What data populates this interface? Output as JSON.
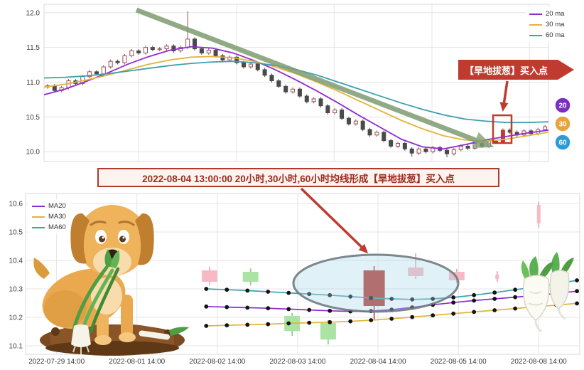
{
  "page": {
    "background": "#ffffff"
  },
  "colors": {
    "ma20": "#8f2bd4",
    "ma30": "#e2b33c",
    "ma60": "#3f9fae",
    "badge20": "#7b2fbe",
    "badge30": "#e8a33d",
    "badge60": "#2d9bd8",
    "signal_red": "#bf3b2f",
    "trend_green": "#7e9c72",
    "grid": "#e4e4e4",
    "frame": "#d9d9d9",
    "axis_text": "#3a3a3a",
    "candle_up_stroke": "#9c5050",
    "candle_up_fill": "#ffffff",
    "candle_down": "#4a4a4a",
    "pink_body": "#f6b9c5",
    "pink_wick": "#ec9dac",
    "green_body": "#abe3a4",
    "green_wick": "#83cc7c",
    "red_body": "#b5382e",
    "marker_dot": "#141414"
  },
  "legend_top": {
    "items": [
      {
        "label": "20 ma"
      },
      {
        "label": "30 ma"
      },
      {
        "label": "60 ma"
      }
    ]
  },
  "legend_bottom": {
    "items": [
      {
        "label": "MA20"
      },
      {
        "label": "MA30"
      },
      {
        "label": "MA60"
      }
    ]
  },
  "badges": [
    {
      "label": "20",
      "color_key": "badge20"
    },
    {
      "label": "30",
      "color_key": "badge30"
    },
    {
      "label": "60",
      "color_key": "badge60"
    }
  ],
  "callout": {
    "text": "【旱地拔葱】买入点"
  },
  "annotation": {
    "text": "2022-08-04 13:00:00 20小时,30小时,60小时均线形成【旱地拔葱】买入点"
  },
  "illustrations": {
    "dog": "sad-dog-pulling-scallion-from-dirt",
    "radish": "white-radish-characters"
  },
  "chart_data": [
    {
      "name": "upper-candlestick-panel",
      "type": "candlestick",
      "ylim": [
        9.9,
        12.1
      ],
      "yticks": [
        12.0,
        11.5,
        11.0,
        10.5,
        10.0
      ],
      "grid": true,
      "legend_position": "top-right",
      "closes": [
        10.95,
        10.88,
        10.92,
        11.02,
        10.98,
        11.08,
        11.15,
        11.12,
        11.22,
        11.3,
        11.28,
        11.38,
        11.45,
        11.42,
        11.5,
        11.47,
        11.48,
        11.52,
        11.45,
        11.5,
        11.62,
        11.48,
        11.42,
        11.46,
        11.38,
        11.32,
        11.36,
        11.28,
        11.22,
        11.26,
        11.18,
        11.1,
        11.02,
        10.94,
        10.86,
        10.9,
        10.8,
        10.72,
        10.76,
        10.66,
        10.56,
        10.6,
        10.48,
        10.4,
        10.44,
        10.32,
        10.24,
        10.28,
        10.16,
        10.08,
        10.12,
        10.04,
        9.98,
        10.04,
        10.0,
        10.06,
        10.02,
        9.97,
        10.03,
        10.08,
        10.05,
        10.12,
        10.08,
        10.15,
        10.14,
        10.31,
        10.28,
        10.24,
        10.3,
        10.26,
        10.32,
        10.36
      ],
      "wick_overrides": {
        "20": {
          "high": 12.02
        },
        "52": {
          "low": 9.93
        },
        "57": {
          "low": 9.92
        }
      },
      "signal_index": 65,
      "series": [
        {
          "name": "20 ma",
          "color_key": "ma20",
          "values": [
            10.82,
            10.9,
            11.01,
            11.13,
            11.26,
            11.37,
            11.46,
            11.51,
            11.49,
            11.42,
            11.31,
            11.18,
            11.03,
            10.87,
            10.7,
            10.52,
            10.35,
            10.18,
            10.07,
            10.04,
            10.1,
            10.17,
            10.22,
            10.27,
            10.31
          ]
        },
        {
          "name": "30 ma",
          "color_key": "ma30",
          "values": [
            10.93,
            10.97,
            11.03,
            11.1,
            11.18,
            11.26,
            11.32,
            11.36,
            11.37,
            11.35,
            11.3,
            11.22,
            11.12,
            11.0,
            10.87,
            10.73,
            10.59,
            10.45,
            10.33,
            10.23,
            10.17,
            10.15,
            10.18,
            10.23,
            10.28
          ]
        },
        {
          "name": "60 ma",
          "color_key": "ma60",
          "values": [
            11.06,
            11.07,
            11.09,
            11.12,
            11.16,
            11.2,
            11.24,
            11.27,
            11.29,
            11.3,
            11.28,
            11.24,
            11.18,
            11.1,
            11.0,
            10.9,
            10.8,
            10.7,
            10.61,
            10.53,
            10.47,
            10.44,
            10.42,
            10.42,
            10.43
          ]
        }
      ]
    },
    {
      "name": "lower-candlestick-panel",
      "type": "candlestick",
      "ylim": [
        10.08,
        10.63
      ],
      "yticks": [
        10.6,
        10.5,
        10.4,
        10.3,
        10.2,
        10.1
      ],
      "grid": true,
      "legend_position": "top-left",
      "xtick_labels": [
        "2022-07-29 14:00",
        "2022-08-01 14:00",
        "2022-08-02 14:00",
        "2022-08-03 14:00",
        "2022-08-04 14:00",
        "2022-08-05 14:00",
        "2022-08-08 14:00"
      ],
      "candles": [
        {
          "x": 0.332,
          "o": 10.325,
          "h": 10.378,
          "l": 10.312,
          "c": 10.365,
          "color": "pink"
        },
        {
          "x": 0.406,
          "o": 10.36,
          "h": 10.372,
          "l": 10.312,
          "c": 10.325,
          "color": "green"
        },
        {
          "x": 0.481,
          "o": 10.205,
          "h": 10.215,
          "l": 10.135,
          "c": 10.152,
          "color": "green"
        },
        {
          "x": 0.546,
          "o": 10.18,
          "h": 10.19,
          "l": 10.105,
          "c": 10.122,
          "color": "green"
        },
        {
          "x": 0.629,
          "o": 10.24,
          "h": 10.38,
          "l": 10.19,
          "c": 10.365,
          "color": "red",
          "width": "wide"
        },
        {
          "x": 0.704,
          "o": 10.345,
          "h": 10.425,
          "l": 10.335,
          "c": 10.375,
          "color": "pink"
        },
        {
          "x": 0.778,
          "o": 10.33,
          "h": 10.37,
          "l": 10.32,
          "c": 10.36,
          "color": "pink"
        },
        {
          "x": 0.851,
          "o": 10.335,
          "h": 10.362,
          "l": 10.325,
          "c": 10.35,
          "color": "pink",
          "width": "thin"
        },
        {
          "x": 0.926,
          "o": 10.53,
          "h": 10.605,
          "l": 10.515,
          "c": 10.595,
          "color": "pink",
          "width": "thin"
        }
      ],
      "series": [
        {
          "name": "MA20",
          "color_key": "ma20",
          "markers": true,
          "x_start": 0.326,
          "x_end": 0.995,
          "values": [
            10.238,
            10.236,
            10.234,
            10.232,
            10.229,
            10.226,
            10.223,
            10.221,
            10.222,
            10.227,
            10.235,
            10.244,
            10.252,
            10.259,
            10.265,
            10.271,
            10.277,
            10.284,
            10.292
          ]
        },
        {
          "name": "MA30",
          "color_key": "ma30",
          "markers": true,
          "x_start": 0.326,
          "x_end": 0.995,
          "values": [
            10.17,
            10.172,
            10.174,
            10.176,
            10.179,
            10.181,
            10.183,
            10.186,
            10.19,
            10.195,
            10.201,
            10.207,
            10.213,
            10.219,
            10.225,
            10.231,
            10.237,
            10.243,
            10.249
          ]
        },
        {
          "name": "MA60",
          "color_key": "ma60",
          "markers": true,
          "x_start": 0.326,
          "x_end": 0.995,
          "values": [
            10.3,
            10.297,
            10.294,
            10.29,
            10.286,
            10.282,
            10.278,
            10.273,
            10.268,
            10.265,
            10.263,
            10.265,
            10.27,
            10.278,
            10.287,
            10.297,
            10.307,
            10.318,
            10.33
          ]
        }
      ]
    }
  ]
}
